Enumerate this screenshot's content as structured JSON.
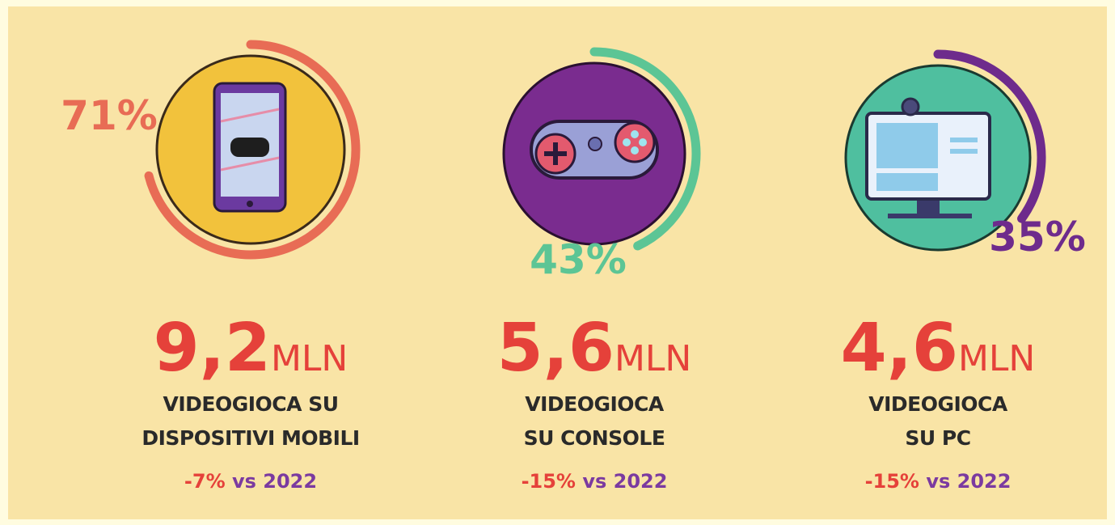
{
  "items": [
    {
      "value": 71,
      "value_label": "71%",
      "color": "#e86c55",
      "count": "9,2",
      "unit": "MLN",
      "description": [
        "VIDEOGIOCA SU",
        "DISPOSITIVI MOBILI"
      ],
      "change": "-7%",
      "comparison": "vs 2022"
    },
    {
      "value": 43,
      "value_label": "43%",
      "color": "#5cc595",
      "count": "5,6",
      "unit": "MLN",
      "description": [
        "VIDEOGIOCA",
        "SU CONSOLE"
      ],
      "change": "-15%",
      "comparison": "vs 2022"
    },
    {
      "value": 35,
      "value_label": "35%",
      "color": "#6e2b8c",
      "count": "4,6",
      "unit": "MLN",
      "description": [
        "VIDEOGIOCA",
        "SU PC"
      ],
      "change": "-15%",
      "comparison": "vs 2022"
    }
  ]
}
